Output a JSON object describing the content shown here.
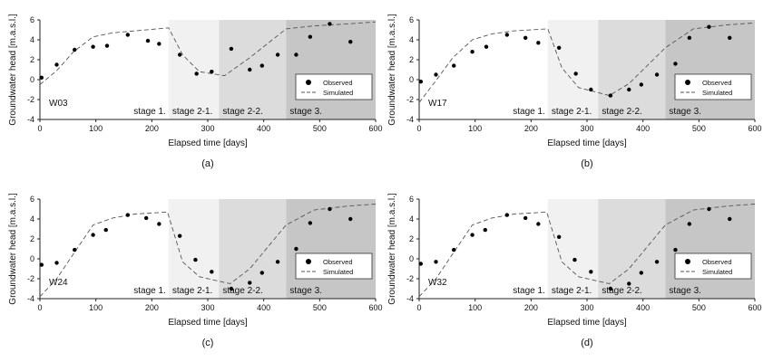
{
  "figure": {
    "xlabel": "Elapsed time [days]",
    "ylabel": "Groundwater head [m.a.s.l.]",
    "xlim": [
      0,
      600
    ],
    "ylim": [
      -4,
      6
    ],
    "xticks": [
      0,
      100,
      200,
      300,
      400,
      500,
      600
    ],
    "yticks": [
      -4,
      -2,
      0,
      2,
      4,
      6
    ],
    "stages": [
      {
        "label": "stage 1.",
        "from": 0,
        "to": 230,
        "color": "#ffffff"
      },
      {
        "label": "stage 2-1.",
        "from": 230,
        "to": 320,
        "color": "#f1f1f1"
      },
      {
        "label": "stage 2-2.",
        "from": 320,
        "to": 440,
        "color": "#dcdcdc"
      },
      {
        "label": "stage 3.",
        "from": 440,
        "to": 600,
        "color": "#c6c6c6"
      }
    ],
    "legend": {
      "observed": "Observed",
      "simulated": "Simulated",
      "placement": "lower-right"
    }
  },
  "chart_data": [
    {
      "type": "scatter+line",
      "well": "W03",
      "caption": "(a)",
      "observed": {
        "x": [
          3,
          30,
          62,
          95,
          120,
          157,
          193,
          213,
          250,
          280,
          307,
          342,
          375,
          397,
          425,
          458,
          483,
          518,
          555
        ],
        "y": [
          0.2,
          1.5,
          3.0,
          3.3,
          3.4,
          4.5,
          3.9,
          3.6,
          2.5,
          0.6,
          0.8,
          3.1,
          1.0,
          1.4,
          2.5,
          2.5,
          4.3,
          5.6,
          3.8
        ]
      },
      "simulated": {
        "x": [
          0,
          30,
          60,
          95,
          130,
          170,
          230,
          255,
          285,
          330,
          375,
          440,
          490,
          550,
          600
        ],
        "y": [
          -0.5,
          0.9,
          2.8,
          4.3,
          4.7,
          4.9,
          5.2,
          2.5,
          0.8,
          0.4,
          2.2,
          5.1,
          5.4,
          5.6,
          5.8
        ]
      }
    },
    {
      "type": "scatter+line",
      "well": "W17",
      "caption": "(b)",
      "observed": {
        "x": [
          3,
          30,
          62,
          95,
          120,
          157,
          190,
          213,
          250,
          280,
          307,
          342,
          375,
          397,
          425,
          458,
          483,
          518,
          555
        ],
        "y": [
          -0.2,
          0.5,
          1.4,
          2.8,
          3.3,
          4.5,
          4.2,
          3.7,
          3.2,
          0.6,
          -1.0,
          -1.6,
          -1.0,
          -0.5,
          0.5,
          1.6,
          4.2,
          5.3,
          4.2
        ]
      },
      "simulated": {
        "x": [
          0,
          30,
          60,
          95,
          130,
          170,
          230,
          255,
          285,
          340,
          375,
          440,
          490,
          550,
          600
        ],
        "y": [
          -2.3,
          -0.1,
          2.2,
          4.0,
          4.6,
          4.9,
          5.1,
          1.2,
          -0.8,
          -1.6,
          -0.4,
          3.2,
          5.1,
          5.5,
          5.7
        ]
      }
    },
    {
      "type": "scatter+line",
      "well": "W24",
      "caption": "(c)",
      "observed": {
        "x": [
          3,
          30,
          62,
          95,
          118,
          157,
          190,
          213,
          250,
          278,
          307,
          342,
          375,
          397,
          425,
          458,
          483,
          518,
          555
        ],
        "y": [
          -0.6,
          -0.4,
          0.9,
          2.4,
          2.9,
          4.4,
          4.1,
          3.5,
          2.3,
          -0.1,
          -1.3,
          -3.0,
          -2.4,
          -1.4,
          -0.3,
          1.0,
          3.6,
          5.0,
          4.0
        ]
      },
      "simulated": {
        "x": [
          0,
          30,
          60,
          95,
          130,
          170,
          228,
          255,
          285,
          340,
          375,
          440,
          490,
          550,
          600
        ],
        "y": [
          -3.8,
          -2.0,
          0.5,
          3.4,
          4.1,
          4.5,
          4.7,
          -0.3,
          -1.8,
          -2.5,
          -1.0,
          3.4,
          4.9,
          5.3,
          5.5
        ]
      }
    },
    {
      "type": "scatter+line",
      "well": "W32",
      "caption": "(d)",
      "observed": {
        "x": [
          3,
          30,
          62,
          95,
          118,
          157,
          190,
          213,
          250,
          278,
          307,
          342,
          375,
          397,
          425,
          458,
          483,
          518,
          555
        ],
        "y": [
          -0.5,
          -0.3,
          0.9,
          2.4,
          2.9,
          4.4,
          4.1,
          3.5,
          2.2,
          -0.1,
          -1.3,
          -3.0,
          -2.5,
          -1.4,
          -0.3,
          0.9,
          3.5,
          5.0,
          4.0
        ]
      },
      "simulated": {
        "x": [
          0,
          30,
          60,
          95,
          130,
          170,
          228,
          255,
          285,
          340,
          375,
          440,
          490,
          550,
          600
        ],
        "y": [
          -3.8,
          -2.0,
          0.5,
          3.4,
          4.1,
          4.5,
          4.7,
          -0.3,
          -1.8,
          -2.5,
          -1.0,
          3.4,
          4.9,
          5.3,
          5.5
        ]
      }
    }
  ]
}
